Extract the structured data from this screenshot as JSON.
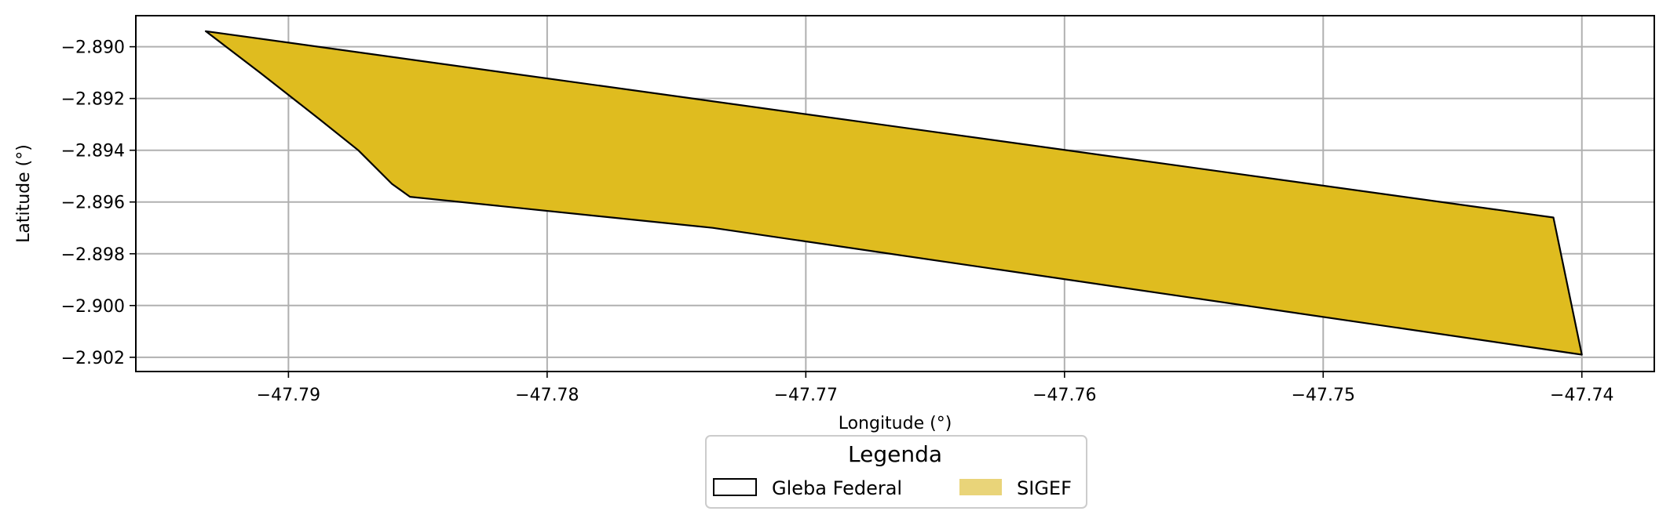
{
  "chart_data": {
    "type": "map",
    "xlabel": "Longitude (°)",
    "ylabel": "Latitude (°)",
    "xlim": [
      -47.7959,
      -47.7372
    ],
    "ylim": [
      -2.90255,
      -2.8888
    ],
    "grid": true,
    "xticks": [
      -47.79,
      -47.78,
      -47.77,
      -47.76,
      -47.75,
      -47.74
    ],
    "xtick_labels": [
      "−47.79",
      "−47.78",
      "−47.77",
      "−47.76",
      "−47.75",
      "−47.74"
    ],
    "yticks": [
      -2.89,
      -2.892,
      -2.894,
      -2.896,
      -2.898,
      -2.9,
      -2.902
    ],
    "ytick_labels": [
      "−2.890",
      "−2.892",
      "−2.894",
      "−2.896",
      "−2.898",
      "−2.900",
      "−2.902"
    ],
    "polygon": {
      "name": "SIGEF",
      "fill_color": "#dfbc1f",
      "edge_color": "#000000",
      "coordinates": [
        [
          -47.7932,
          -2.8894
        ],
        [
          -47.7911,
          -2.891
        ],
        [
          -47.7888,
          -2.8928
        ],
        [
          -47.7873,
          -2.894
        ],
        [
          -47.786,
          -2.8953
        ],
        [
          -47.7853,
          -2.8958
        ],
        [
          -47.7736,
          -2.897
        ],
        [
          -47.74,
          -2.9019
        ],
        [
          -47.7411,
          -2.8966
        ],
        [
          -47.7932,
          -2.8894
        ]
      ]
    },
    "legend": {
      "title": "Legenda",
      "placement": "bottom-center",
      "entries": [
        {
          "label": "Gleba Federal",
          "style": "outline",
          "color": "#000000"
        },
        {
          "label": "SIGEF",
          "style": "filled",
          "color": "#e9d479"
        }
      ]
    }
  }
}
